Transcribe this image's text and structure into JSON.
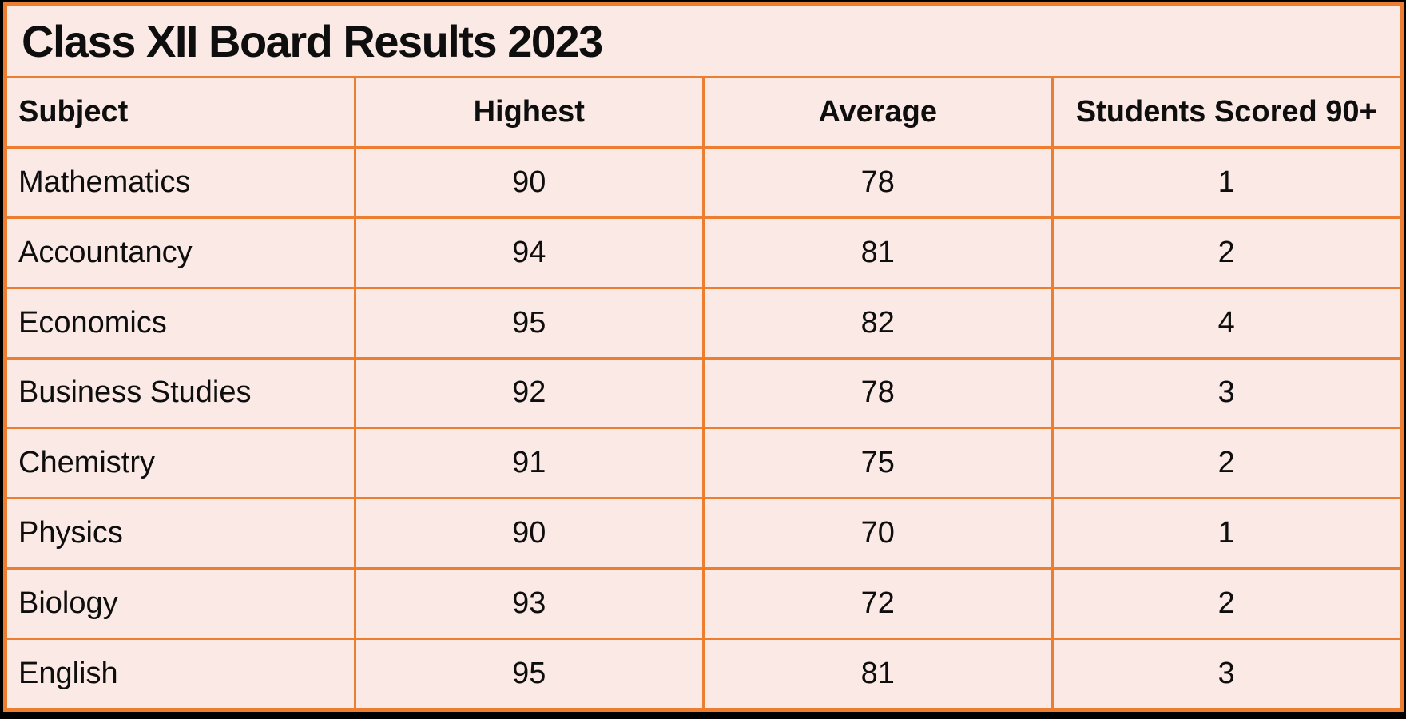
{
  "chart_data": {
    "type": "table",
    "title": "Class XII Board Results 2023",
    "columns": [
      "Subject",
      "Highest",
      "Average",
      "Students Scored 90+"
    ],
    "rows": [
      [
        "Mathematics",
        90,
        78,
        1
      ],
      [
        "Accountancy",
        94,
        81,
        2
      ],
      [
        "Economics",
        95,
        82,
        4
      ],
      [
        "Business Studies",
        92,
        78,
        3
      ],
      [
        "Chemistry",
        91,
        75,
        2
      ],
      [
        "Physics",
        90,
        70,
        1
      ],
      [
        "Biology",
        93,
        72,
        2
      ],
      [
        "English",
        95,
        81,
        3
      ]
    ]
  },
  "colors": {
    "table_background": "#FAE9E4",
    "grid_border": "#ED7D31",
    "outer_frame": "#000000",
    "text": "#0E0E0E"
  }
}
